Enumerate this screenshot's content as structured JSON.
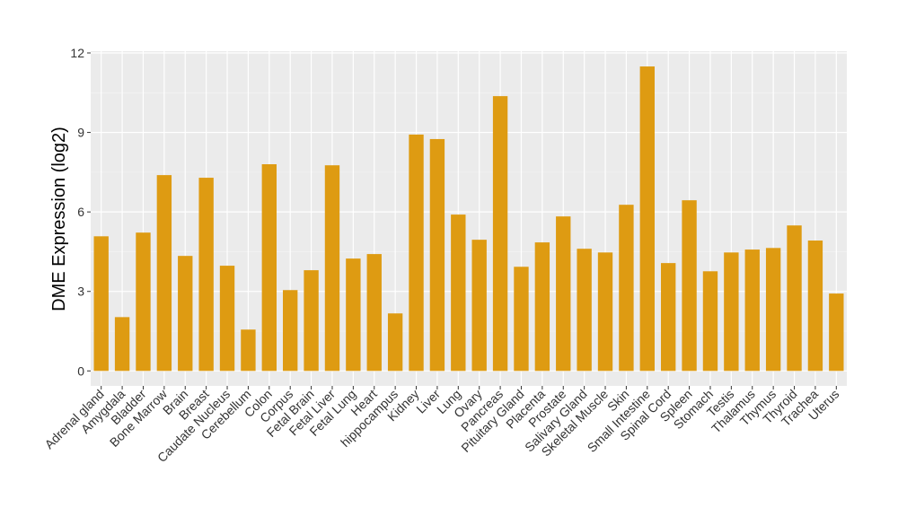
{
  "chart_data": {
    "type": "bar",
    "title": "",
    "xlabel": "",
    "ylabel": "DME Expression (log2)",
    "ylim": [
      -0.6,
      12.1
    ],
    "yticks": [
      0,
      3,
      6,
      9,
      12
    ],
    "grid": true,
    "bar_color": "#DE9B12",
    "panel_color": "#EBEBEB",
    "categories": [
      "Adrenal gland",
      "Amygdala",
      "Bladder",
      "Bone Marrow",
      "Brain",
      "Breast",
      "Caudate Nucleus",
      "Cerebellum",
      "Colon",
      "Corpus",
      "Fetal Brain",
      "Fetal Liver",
      "Fetal Lung",
      "Heart",
      "hippocampus",
      "Kidney",
      "Liver",
      "Lung",
      "Ovary",
      "Pancreas",
      "Pituitary Gland",
      "Placenta",
      "Prostate",
      "Salivary Gland",
      "Skeletal Muscle",
      "Skin",
      "Small Intestine",
      "Spinal Cord",
      "Spleen",
      "Stomach",
      "Testis",
      "Thalamus",
      "Thymus",
      "Thyroid",
      "Trachea",
      "Uterus"
    ],
    "values": [
      5.08,
      2.03,
      5.22,
      7.39,
      4.34,
      7.29,
      3.97,
      1.56,
      7.8,
      3.05,
      3.8,
      7.76,
      4.24,
      4.41,
      2.17,
      8.92,
      8.75,
      5.9,
      4.95,
      10.37,
      3.93,
      4.85,
      5.83,
      4.61,
      4.47,
      6.27,
      11.49,
      4.07,
      6.44,
      3.76,
      4.47,
      4.58,
      4.64,
      5.49,
      4.92,
      2.92
    ]
  }
}
